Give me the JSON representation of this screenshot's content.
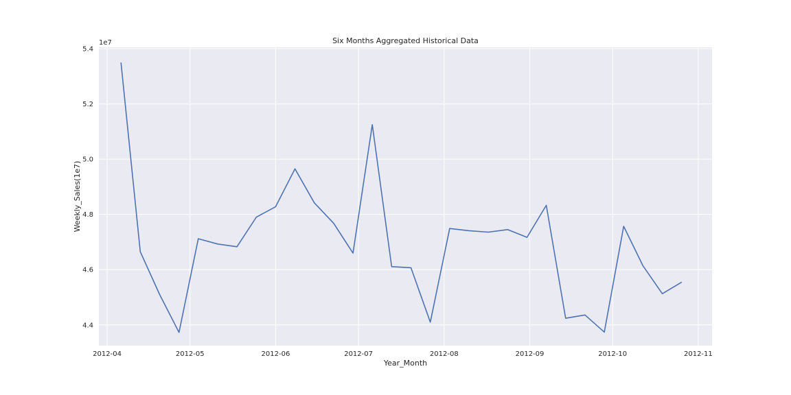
{
  "chart_data": {
    "type": "line",
    "title": "Six Months Aggregated Historical Data",
    "xlabel": "Year_Month",
    "ylabel": "Weekly_Sales(1e7)",
    "y_offset_label": "1e7",
    "x_is_date": true,
    "xlim": [
      "2012-03-29",
      "2012-11-06"
    ],
    "ylim": [
      4.325,
      5.405
    ],
    "x_ticks": [
      "2012-04-01",
      "2012-05-01",
      "2012-06-01",
      "2012-07-01",
      "2012-08-01",
      "2012-09-01",
      "2012-10-01",
      "2012-11-01"
    ],
    "x_tick_labels": [
      "2012-04",
      "2012-05",
      "2012-06",
      "2012-07",
      "2012-08",
      "2012-09",
      "2012-10",
      "2012-11"
    ],
    "y_ticks": [
      4.4,
      4.6,
      4.8,
      5.0,
      5.2,
      5.4
    ],
    "y_tick_labels": [
      "4.4",
      "4.6",
      "4.8",
      "5.0",
      "5.2",
      "5.4"
    ],
    "grid": true,
    "background": "#EAEAF2",
    "line_color": "#4C72B0",
    "series": [
      {
        "x": [
          "2012-04-06",
          "2012-04-13",
          "2012-04-20",
          "2012-04-27",
          "2012-05-04",
          "2012-05-11",
          "2012-05-18",
          "2012-05-25",
          "2012-06-01",
          "2012-06-08",
          "2012-06-15",
          "2012-06-22",
          "2012-06-29",
          "2012-07-06",
          "2012-07-13",
          "2012-07-20",
          "2012-07-27",
          "2012-08-03",
          "2012-08-10",
          "2012-08-17",
          "2012-08-24",
          "2012-08-31",
          "2012-09-07",
          "2012-09-14",
          "2012-09-21",
          "2012-09-28",
          "2012-10-05",
          "2012-10-12",
          "2012-10-19",
          "2012-10-26"
        ],
        "y": [
          5.35,
          4.665,
          4.51,
          4.373,
          4.712,
          4.693,
          4.683,
          4.79,
          4.828,
          4.965,
          4.842,
          4.768,
          4.66,
          5.125,
          4.611,
          4.607,
          4.41,
          4.749,
          4.741,
          4.736,
          4.745,
          4.717,
          4.833,
          4.424,
          4.436,
          4.374,
          4.757,
          4.614,
          4.513,
          4.555
        ]
      }
    ]
  }
}
